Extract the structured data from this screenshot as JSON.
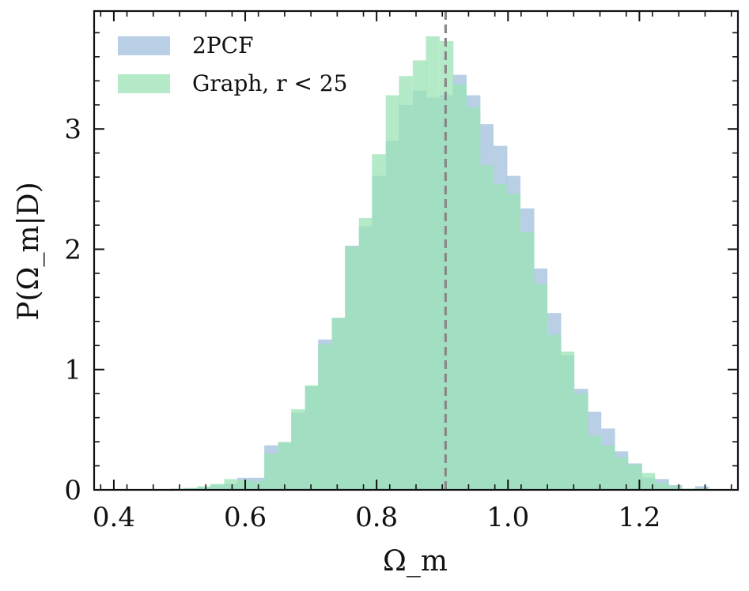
{
  "chart_data": {
    "type": "histogram",
    "xlabel": "Ω_m",
    "ylabel": "P(Ω_m|D)",
    "xlim": [
      0.37,
      1.35
    ],
    "ylim": [
      0,
      3.98
    ],
    "x_ticks": [
      {
        "value": 0.4,
        "label": "0.4"
      },
      {
        "value": 0.6,
        "label": "0.6"
      },
      {
        "value": 0.8,
        "label": "0.8"
      },
      {
        "value": 1.0,
        "label": "1.0"
      },
      {
        "value": 1.2,
        "label": "1.2"
      }
    ],
    "y_ticks": [
      {
        "value": 0,
        "label": "0"
      },
      {
        "value": 1,
        "label": "1"
      },
      {
        "value": 2,
        "label": "2"
      },
      {
        "value": 3,
        "label": "3"
      }
    ],
    "reference_line": {
      "x": 0.905,
      "style": "dashed",
      "color": "#888888"
    },
    "legend": {
      "position": "top-left"
    },
    "series": [
      {
        "name": "2PCF",
        "color": "#a4c1de",
        "opacity": 0.78,
        "bin_width": 0.0205,
        "bin_starts": [
          0.465,
          0.486,
          0.506,
          0.527,
          0.547,
          0.568,
          0.588,
          0.609,
          0.629,
          0.65,
          0.67,
          0.691,
          0.711,
          0.732,
          0.752,
          0.773,
          0.793,
          0.814,
          0.834,
          0.855,
          0.875,
          0.896,
          0.916,
          0.937,
          0.957,
          0.978,
          0.998,
          1.019,
          1.039,
          1.06,
          1.08,
          1.101,
          1.121,
          1.142,
          1.162,
          1.183,
          1.203,
          1.224,
          1.244,
          1.265,
          1.285
        ],
        "values": [
          0.005,
          0.01,
          0.015,
          0.02,
          0.04,
          0.05,
          0.1,
          0.1,
          0.37,
          0.39,
          0.64,
          0.86,
          1.25,
          1.43,
          2.03,
          2.19,
          2.61,
          2.9,
          3.2,
          3.32,
          3.26,
          3.28,
          3.45,
          3.28,
          3.04,
          2.86,
          2.61,
          2.34,
          1.84,
          1.47,
          1.12,
          0.84,
          0.65,
          0.51,
          0.32,
          0.22,
          0.1,
          0.09,
          0.04,
          0.01,
          0.03
        ]
      },
      {
        "name": "Graph, r < 25",
        "color": "#9be3b6",
        "opacity": 0.75,
        "bin_width": 0.0205,
        "bin_starts": [
          0.465,
          0.486,
          0.506,
          0.527,
          0.547,
          0.568,
          0.588,
          0.609,
          0.629,
          0.65,
          0.67,
          0.691,
          0.711,
          0.732,
          0.752,
          0.773,
          0.793,
          0.814,
          0.834,
          0.855,
          0.875,
          0.896,
          0.916,
          0.937,
          0.957,
          0.978,
          0.998,
          1.019,
          1.039,
          1.06,
          1.08,
          1.101,
          1.121,
          1.142,
          1.162,
          1.183,
          1.203,
          1.224,
          1.244,
          1.265,
          1.285
        ],
        "values": [
          0.005,
          0.01,
          0.015,
          0.03,
          0.05,
          0.09,
          0.08,
          0.07,
          0.3,
          0.4,
          0.67,
          0.87,
          1.21,
          1.43,
          2.02,
          2.26,
          2.79,
          3.28,
          3.44,
          3.57,
          3.77,
          3.73,
          3.37,
          3.18,
          2.7,
          2.54,
          2.46,
          2.14,
          1.71,
          1.29,
          1.15,
          0.8,
          0.45,
          0.37,
          0.27,
          0.21,
          0.14,
          0.06,
          0.03,
          0.01,
          0.01
        ]
      }
    ]
  }
}
